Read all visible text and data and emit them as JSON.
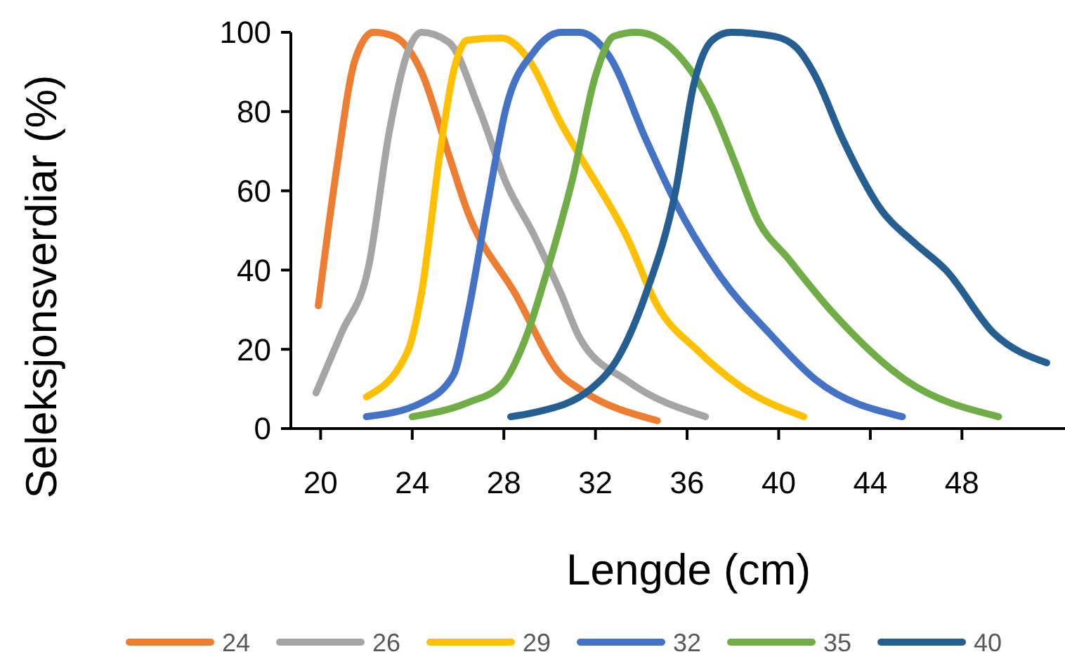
{
  "chart_data": {
    "type": "line",
    "xlabel": "Lengde (cm)",
    "ylabel": "Seleksjonsverdiar  (%)",
    "xlim": [
      18.7,
      52.5
    ],
    "xticks": [
      20,
      24,
      28,
      32,
      36,
      40,
      44,
      48
    ],
    "ylim": [
      0,
      100
    ],
    "yticks": [
      0,
      20,
      40,
      60,
      80,
      100
    ],
    "grid": false,
    "legend": "bottom",
    "marker": "none",
    "line_style": "solid",
    "series": [
      {
        "name": "24",
        "color": "#ed7d31",
        "x": [
          19.9,
          20.7,
          21.5,
          22.3,
          23.2,
          24.4,
          25.6,
          26.4,
          28.5,
          30.5,
          31.3,
          34.7
        ],
        "values": [
          31,
          65.6,
          93,
          100,
          99,
          90,
          69,
          55,
          34,
          13.5,
          10,
          2
        ]
      },
      {
        "name": "26",
        "color": "#a5a5a5",
        "x": [
          19.8,
          20.9,
          22.1,
          23,
          23.8,
          24.4,
          25.6,
          26.9,
          28.1,
          29.3,
          30.5,
          31.3,
          33.4,
          36.8
        ],
        "values": [
          9,
          24,
          41,
          75,
          95,
          100,
          97.5,
          81,
          62,
          49,
          34,
          23,
          12,
          3
        ]
      },
      {
        "name": "29",
        "color": "#ffc000",
        "x": [
          22,
          23.8,
          24.4,
          25.2,
          25.8,
          26.4,
          27.9,
          29.1,
          30.5,
          31.3,
          33.4,
          34.7,
          36.5,
          38.5,
          41.1
        ],
        "values": [
          8,
          19.5,
          34,
          69,
          90,
          98,
          98.6,
          93,
          77,
          69,
          48,
          31,
          19.5,
          10,
          3
        ]
      },
      {
        "name": "32",
        "color": "#4472c4",
        "x": [
          22,
          24.4,
          25.8,
          26.4,
          27.3,
          28.1,
          29.3,
          30.5,
          31.3,
          32.6,
          34.2,
          35.5,
          37.5,
          39.6,
          41.6,
          45.4
        ],
        "values": [
          3,
          6.5,
          13.5,
          28,
          57,
          81,
          95,
          100,
          100,
          94,
          73,
          57,
          38,
          24,
          12.4,
          3
        ]
      },
      {
        "name": "35",
        "color": "#70ad47",
        "x": [
          24,
          26.4,
          27.9,
          28.9,
          29.9,
          31,
          32,
          32.8,
          33.8,
          35.5,
          37.1,
          38.1,
          39.1,
          40.4,
          42.4,
          45.5,
          49.6
        ],
        "values": [
          3,
          6.5,
          11,
          22,
          40,
          63,
          89,
          99,
          100,
          95,
          81,
          67,
          52.5,
          43,
          29,
          12.4,
          3
        ]
      },
      {
        "name": "40",
        "color": "#255e91",
        "x": [
          28.3,
          29.3,
          31.8,
          33,
          34.2,
          35.5,
          36.3,
          37.1,
          37.9,
          39.8,
          40.8,
          41.6,
          42.8,
          44.5,
          45.9,
          47.3,
          49.4,
          51.7
        ],
        "values": [
          3,
          4,
          10,
          18,
          34,
          60,
          87,
          98,
          100,
          99,
          96,
          89,
          73,
          55,
          47,
          40,
          24,
          16.6
        ]
      }
    ]
  }
}
